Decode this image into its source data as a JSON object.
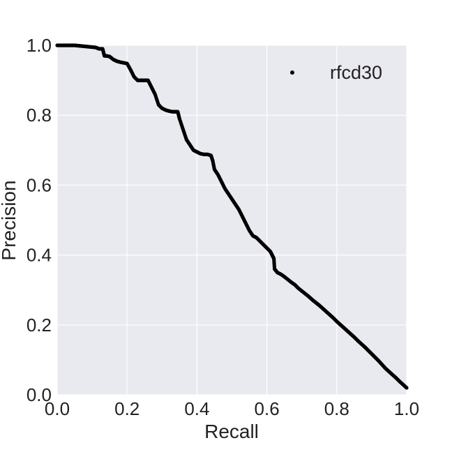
{
  "chart_data": {
    "type": "scatter",
    "title": "",
    "xlabel": "Recall",
    "ylabel": "Precision",
    "xlim": [
      0.0,
      1.0
    ],
    "ylim": [
      0.0,
      1.0
    ],
    "xticks": [
      "0.0",
      "0.2",
      "0.4",
      "0.6",
      "0.8",
      "1.0"
    ],
    "yticks": [
      "0.0",
      "0.2",
      "0.4",
      "0.6",
      "0.8",
      "1.0"
    ],
    "grid": true,
    "legend_position": "top-right",
    "background_color": "#e9e9f0",
    "grid_color": "#ffffff",
    "series": [
      {
        "name": "rfcd30",
        "color": "#000000",
        "marker": "dot",
        "points": [
          [
            0.0,
            1.0
          ],
          [
            0.01,
            1.0
          ],
          [
            0.02,
            1.0
          ],
          [
            0.03,
            1.0
          ],
          [
            0.04,
            1.0
          ],
          [
            0.05,
            1.0
          ],
          [
            0.06,
            0.999
          ],
          [
            0.07,
            0.998
          ],
          [
            0.08,
            0.997
          ],
          [
            0.09,
            0.996
          ],
          [
            0.1,
            0.995
          ],
          [
            0.11,
            0.994
          ],
          [
            0.12,
            0.99
          ],
          [
            0.13,
            0.99
          ],
          [
            0.135,
            0.97
          ],
          [
            0.14,
            0.97
          ],
          [
            0.15,
            0.968
          ],
          [
            0.16,
            0.96
          ],
          [
            0.17,
            0.955
          ],
          [
            0.18,
            0.952
          ],
          [
            0.19,
            0.95
          ],
          [
            0.2,
            0.948
          ],
          [
            0.21,
            0.93
          ],
          [
            0.22,
            0.91
          ],
          [
            0.23,
            0.9
          ],
          [
            0.24,
            0.9
          ],
          [
            0.25,
            0.9
          ],
          [
            0.26,
            0.9
          ],
          [
            0.27,
            0.88
          ],
          [
            0.28,
            0.86
          ],
          [
            0.29,
            0.83
          ],
          [
            0.3,
            0.82
          ],
          [
            0.31,
            0.815
          ],
          [
            0.32,
            0.812
          ],
          [
            0.33,
            0.81
          ],
          [
            0.34,
            0.81
          ],
          [
            0.345,
            0.81
          ],
          [
            0.35,
            0.79
          ],
          [
            0.36,
            0.76
          ],
          [
            0.37,
            0.73
          ],
          [
            0.38,
            0.715
          ],
          [
            0.39,
            0.7
          ],
          [
            0.4,
            0.695
          ],
          [
            0.41,
            0.69
          ],
          [
            0.42,
            0.688
          ],
          [
            0.43,
            0.688
          ],
          [
            0.44,
            0.685
          ],
          [
            0.445,
            0.67
          ],
          [
            0.45,
            0.645
          ],
          [
            0.46,
            0.63
          ],
          [
            0.47,
            0.61
          ],
          [
            0.48,
            0.59
          ],
          [
            0.49,
            0.575
          ],
          [
            0.5,
            0.56
          ],
          [
            0.51,
            0.545
          ],
          [
            0.52,
            0.53
          ],
          [
            0.53,
            0.51
          ],
          [
            0.54,
            0.49
          ],
          [
            0.55,
            0.47
          ],
          [
            0.56,
            0.455
          ],
          [
            0.57,
            0.45
          ],
          [
            0.58,
            0.44
          ],
          [
            0.59,
            0.43
          ],
          [
            0.6,
            0.42
          ],
          [
            0.61,
            0.41
          ],
          [
            0.615,
            0.4
          ],
          [
            0.62,
            0.39
          ],
          [
            0.622,
            0.36
          ],
          [
            0.63,
            0.35
          ],
          [
            0.64,
            0.345
          ],
          [
            0.65,
            0.338
          ],
          [
            0.66,
            0.33
          ],
          [
            0.67,
            0.322
          ],
          [
            0.68,
            0.315
          ],
          [
            0.69,
            0.305
          ],
          [
            0.7,
            0.297
          ],
          [
            0.71,
            0.289
          ],
          [
            0.72,
            0.281
          ],
          [
            0.73,
            0.272
          ],
          [
            0.74,
            0.264
          ],
          [
            0.75,
            0.256
          ],
          [
            0.76,
            0.247
          ],
          [
            0.77,
            0.238
          ],
          [
            0.78,
            0.229
          ],
          [
            0.79,
            0.22
          ],
          [
            0.8,
            0.21
          ],
          [
            0.81,
            0.201
          ],
          [
            0.82,
            0.192
          ],
          [
            0.83,
            0.183
          ],
          [
            0.84,
            0.174
          ],
          [
            0.85,
            0.165
          ],
          [
            0.86,
            0.155
          ],
          [
            0.87,
            0.146
          ],
          [
            0.88,
            0.137
          ],
          [
            0.89,
            0.127
          ],
          [
            0.9,
            0.117
          ],
          [
            0.91,
            0.107
          ],
          [
            0.92,
            0.097
          ],
          [
            0.93,
            0.086
          ],
          [
            0.94,
            0.075
          ],
          [
            0.95,
            0.066
          ],
          [
            0.96,
            0.057
          ],
          [
            0.97,
            0.048
          ],
          [
            0.98,
            0.038
          ],
          [
            0.99,
            0.029
          ],
          [
            1.0,
            0.02
          ]
        ]
      }
    ]
  }
}
